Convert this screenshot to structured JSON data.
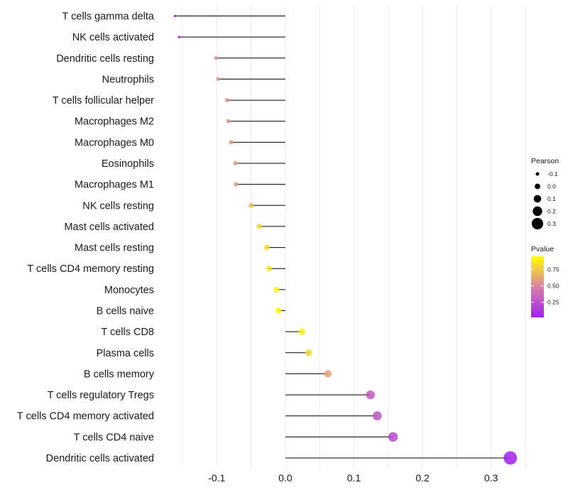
{
  "chart_data": {
    "type": "lollipop",
    "title": "",
    "xlabel": "",
    "ylabel": "",
    "xlim": [
      -0.18,
      0.35
    ],
    "xticks": [
      -0.1,
      0.0,
      0.1,
      0.2,
      0.3
    ],
    "xtick_labels": [
      "-0.1",
      "0.0",
      "0.1",
      "0.2",
      "0.3"
    ],
    "categories": [
      "T cells gamma delta",
      "NK cells activated",
      "Dendritic cells resting",
      "Neutrophils",
      "T cells follicular helper",
      "Macrophages M2",
      "Macrophages M0",
      "Eosinophils",
      "Macrophages M1",
      "NK cells resting",
      "Mast cells activated",
      "Mast cells resting",
      "T cells CD4 memory resting",
      "Monocytes",
      "B cells naive",
      "T cells CD8",
      "Plasma cells",
      "B cells memory",
      "T cells regulatory  Tregs ",
      "T cells CD4 memory activated",
      "T cells CD4 naive",
      "Dendritic cells activated"
    ],
    "pearson": [
      -0.161,
      -0.155,
      -0.101,
      -0.098,
      -0.085,
      -0.083,
      -0.079,
      -0.073,
      -0.072,
      -0.05,
      -0.038,
      -0.027,
      -0.024,
      -0.013,
      -0.01,
      0.024,
      0.034,
      0.062,
      0.124,
      0.134,
      0.157,
      0.328
    ],
    "pvalue": [
      0.05,
      0.08,
      0.55,
      0.55,
      0.55,
      0.56,
      0.58,
      0.6,
      0.6,
      0.7,
      0.8,
      0.82,
      0.85,
      0.92,
      0.95,
      0.88,
      0.8,
      0.6,
      0.3,
      0.28,
      0.22,
      0.02
    ],
    "size_legend": {
      "title": "Pearson",
      "labels": [
        "-0.1",
        "0.0",
        "0.1",
        "0.2",
        "0.3"
      ],
      "values": [
        -0.1,
        0.0,
        0.1,
        0.2,
        0.3
      ]
    },
    "color_legend": {
      "title": "Pvalue",
      "labels": [
        "0.75",
        "0.50",
        "0.25"
      ],
      "values": [
        0.75,
        0.5,
        0.25
      ],
      "range": [
        0.02,
        0.95
      ],
      "low_color": "#a020f0",
      "mid_color": "#d882a6",
      "high_color": "#ffff00"
    },
    "line_color": "#000000",
    "grid_color": "#ebebeb"
  }
}
